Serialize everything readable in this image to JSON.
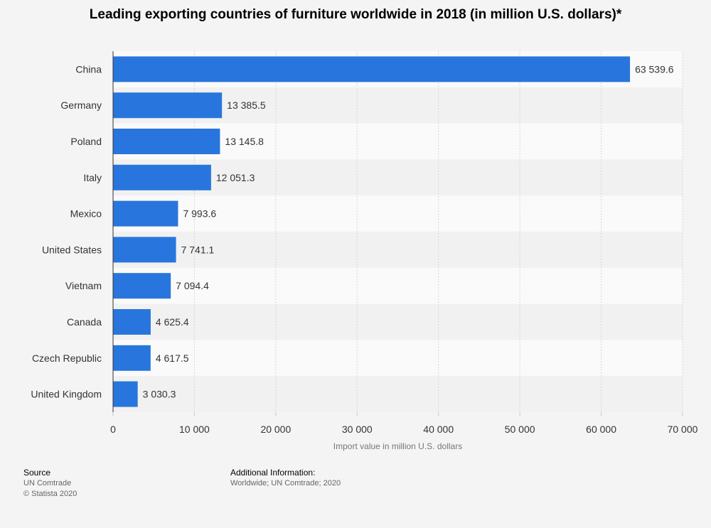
{
  "chart_data": {
    "type": "bar",
    "orientation": "horizontal",
    "title": "Leading exporting countries of furniture worldwide in 2018 (in million U.S. dollars)*",
    "categories": [
      "China",
      "Germany",
      "Poland",
      "Italy",
      "Mexico",
      "United States",
      "Vietnam",
      "Canada",
      "Czech Republic",
      "United Kingdom"
    ],
    "values": [
      63539.6,
      13385.5,
      13145.8,
      12051.3,
      7993.6,
      7741.1,
      7094.4,
      4625.4,
      4617.5,
      3030.3
    ],
    "value_labels": [
      "63 539.6",
      "13 385.5",
      "13 145.8",
      "12 051.3",
      "7 993.6",
      "7 741.1",
      "7 094.4",
      "4 625.4",
      "4 617.5",
      "3 030.3"
    ],
    "xlabel": "Import value in million U.S. dollars",
    "ylabel": "",
    "xlim": [
      0,
      70000
    ],
    "ticks": [
      0,
      10000,
      20000,
      30000,
      40000,
      50000,
      60000,
      70000
    ],
    "tick_labels": [
      "0",
      "10 000",
      "20 000",
      "30 000",
      "40 000",
      "50 000",
      "60 000",
      "70 000"
    ],
    "grid": true,
    "bar_color": "#2876dd"
  },
  "footer": {
    "source_heading": "Source",
    "source_lines": [
      "UN Comtrade",
      "© Statista 2020"
    ],
    "additional_heading": "Additional Information:",
    "additional_lines": [
      "Worldwide; UN Comtrade; 2020"
    ]
  }
}
